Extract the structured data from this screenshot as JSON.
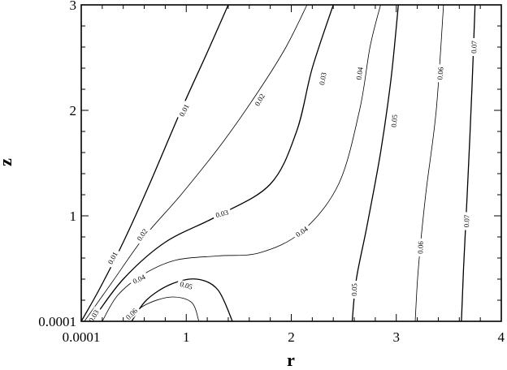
{
  "chart_data": {
    "type": "contour",
    "title": "",
    "xlabel": "r",
    "ylabel": "z",
    "xlim": [
      0.0001,
      4
    ],
    "ylim": [
      0.0001,
      3
    ],
    "xticks": [
      {
        "value": 0.0001,
        "label": "0.0001"
      },
      {
        "value": 1,
        "label": "1"
      },
      {
        "value": 2,
        "label": "2"
      },
      {
        "value": 3,
        "label": "3"
      },
      {
        "value": 4,
        "label": "4"
      }
    ],
    "yticks": [
      {
        "value": 0.0001,
        "label": "0.0001"
      },
      {
        "value": 1,
        "label": "1"
      },
      {
        "value": 2,
        "label": "2"
      },
      {
        "value": 3,
        "label": "3"
      }
    ],
    "minor_ticks_per_interval": 4,
    "grid": false,
    "contours": [
      {
        "level": "0.01",
        "bold": true,
        "points": [
          [
            0.0001,
            0.0001
          ],
          [
            0.17,
            0.3
          ],
          [
            0.4,
            0.75
          ],
          [
            0.65,
            1.3
          ],
          [
            0.95,
            2.0
          ],
          [
            1.2,
            2.55
          ],
          [
            1.4,
            3.0
          ]
        ],
        "labels": [
          {
            "text": "0.01",
            "at": [
              0.3,
              0.6
            ],
            "angle": -62
          },
          {
            "text": "0.01",
            "at": [
              0.98,
              2.0
            ],
            "angle": -62
          }
        ]
      },
      {
        "level": "0.02",
        "bold": false,
        "points": [
          [
            0.03,
            0.0001
          ],
          [
            0.3,
            0.38
          ],
          [
            0.6,
            0.8
          ],
          [
            0.95,
            1.2
          ],
          [
            1.35,
            1.7
          ],
          [
            1.7,
            2.2
          ],
          [
            1.95,
            2.6
          ],
          [
            2.15,
            3.0
          ]
        ],
        "labels": [
          {
            "text": "0.02",
            "at": [
              0.58,
              0.82
            ],
            "angle": -55
          },
          {
            "text": "0.02",
            "at": [
              1.7,
              2.1
            ],
            "angle": -60
          }
        ]
      },
      {
        "level": "0.03",
        "bold": true,
        "points": [
          [
            0.1,
            0.0001
          ],
          [
            0.4,
            0.4
          ],
          [
            0.8,
            0.75
          ],
          [
            1.3,
            1.0
          ],
          [
            1.8,
            1.3
          ],
          [
            2.05,
            1.8
          ],
          [
            2.2,
            2.4
          ],
          [
            2.4,
            3.0
          ]
        ],
        "labels": [
          {
            "text": "0.03",
            "at": [
              1.34,
              1.02
            ],
            "angle": -15
          },
          {
            "text": "0.03",
            "at": [
              2.3,
              2.3
            ],
            "angle": -80
          }
        ]
      },
      {
        "level": "0.04",
        "bold": false,
        "points": [
          [
            0.2,
            0.0001
          ],
          [
            0.35,
            0.25
          ],
          [
            0.6,
            0.45
          ],
          [
            0.9,
            0.58
          ],
          [
            1.3,
            0.62
          ],
          [
            1.7,
            0.65
          ],
          [
            2.1,
            0.85
          ],
          [
            2.45,
            1.3
          ],
          [
            2.65,
            2.0
          ],
          [
            2.75,
            2.6
          ],
          [
            2.85,
            3.0
          ]
        ],
        "labels": [
          {
            "text": "0.04",
            "at": [
              0.55,
              0.4
            ],
            "angle": -25
          },
          {
            "text": "0.04",
            "at": [
              2.1,
              0.85
            ],
            "angle": -35
          },
          {
            "text": "0.04",
            "at": [
              2.65,
              2.35
            ],
            "angle": -82
          }
        ]
      },
      {
        "level": "0.05",
        "bold": true,
        "points": [
          [
            0.48,
            0.0001
          ],
          [
            0.62,
            0.2
          ],
          [
            0.85,
            0.35
          ],
          [
            1.1,
            0.4
          ],
          [
            1.3,
            0.3
          ],
          [
            1.44,
            0.0001
          ]
        ],
        "labels": [
          {
            "text": "0.05",
            "at": [
              1.0,
              0.34
            ],
            "angle": 15
          }
        ]
      },
      {
        "level": "0.05",
        "bold": true,
        "points": [
          [
            2.58,
            0.0001
          ],
          [
            2.62,
            0.4
          ],
          [
            2.72,
            0.9
          ],
          [
            2.85,
            1.6
          ],
          [
            2.95,
            2.3
          ],
          [
            3.02,
            3.0
          ]
        ],
        "labels": [
          {
            "text": "0.05",
            "at": [
              2.6,
              0.3
            ],
            "angle": -88
          },
          {
            "text": "0.05",
            "at": [
              2.98,
              1.9
            ],
            "angle": -85
          }
        ]
      },
      {
        "level": "0.06",
        "bold": false,
        "points": [
          [
            3.18,
            0.0001
          ],
          [
            3.21,
            0.5
          ],
          [
            3.28,
            1.2
          ],
          [
            3.38,
            2.0
          ],
          [
            3.45,
            3.0
          ]
        ],
        "labels": [
          {
            "text": "0.06",
            "at": [
              3.23,
              0.7
            ],
            "angle": -88
          },
          {
            "text": "0.06",
            "at": [
              3.42,
              2.35
            ],
            "angle": -85
          }
        ]
      },
      {
        "level": "0.07",
        "bold": true,
        "points": [
          [
            3.62,
            0.0001
          ],
          [
            3.64,
            0.5
          ],
          [
            3.68,
            1.3
          ],
          [
            3.72,
            2.2
          ],
          [
            3.75,
            3.0
          ]
        ],
        "labels": [
          {
            "text": "0.07",
            "at": [
              3.67,
              0.95
            ],
            "angle": -88
          },
          {
            "text": "0.07",
            "at": [
              3.74,
              2.6
            ],
            "angle": -88
          }
        ]
      },
      {
        "level": "0.06",
        "bold": false,
        "points": [
          [
            0.42,
            0.0001
          ],
          [
            0.6,
            0.15
          ],
          [
            0.85,
            0.23
          ],
          [
            1.05,
            0.18
          ],
          [
            1.12,
            0.0001
          ]
        ],
        "labels": [
          {
            "text": "0.06",
            "at": [
              0.48,
              0.07
            ],
            "angle": -45
          }
        ]
      }
    ],
    "extra_labels": [
      {
        "text": "0.03",
        "at": [
          0.12,
          0.05
        ],
        "angle": -60
      }
    ]
  }
}
